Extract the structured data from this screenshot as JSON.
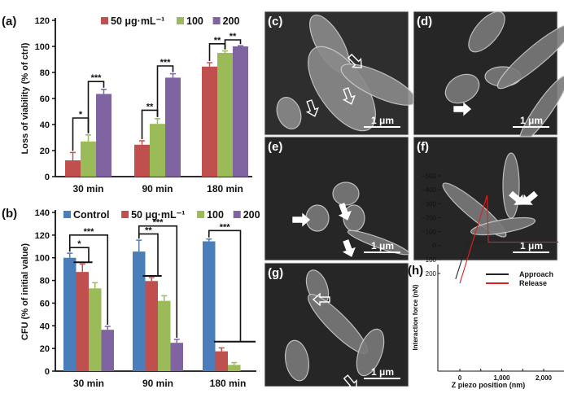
{
  "colors": {
    "control": "#4a7ebb",
    "c50": "#c0504d",
    "c100": "#9bbb59",
    "c200": "#8064a2",
    "approach": "#222222",
    "release": "#e02020"
  },
  "chart_data": [
    {
      "panel": "(a)",
      "type": "bar",
      "ylabel": "Loss of viability (% of ctrl)",
      "categories": [
        "30 min",
        "90 min",
        "180 min"
      ],
      "ylim": [
        0,
        120
      ],
      "yticks": [
        0,
        20,
        40,
        60,
        80,
        100,
        120
      ],
      "legend_position": "top",
      "series": [
        {
          "name": "50 μg·mL⁻¹",
          "color_key": "c50",
          "values": [
            12.5,
            24.5,
            84.5
          ],
          "errors": [
            6,
            3,
            3
          ]
        },
        {
          "name": "100",
          "color_key": "c100",
          "values": [
            27,
            40.5,
            95
          ],
          "errors": [
            5,
            4,
            1.5
          ]
        },
        {
          "name": "200",
          "color_key": "c200",
          "values": [
            63.5,
            76,
            100
          ],
          "errors": [
            3.5,
            3,
            0.5
          ]
        }
      ],
      "brackets": [
        {
          "group": 0,
          "from": 0,
          "to": 1,
          "level": 45,
          "label": "*"
        },
        {
          "group": 0,
          "from": 1,
          "to": 2,
          "level": 73,
          "label": "***"
        },
        {
          "group": 1,
          "from": 0,
          "to": 1,
          "level": 51,
          "label": "**"
        },
        {
          "group": 1,
          "from": 1,
          "to": 2,
          "level": 85,
          "label": "***"
        },
        {
          "group": 2,
          "from": 0,
          "to": 1,
          "level": 102,
          "label": "**"
        },
        {
          "group": 2,
          "from": 1,
          "to": 2,
          "level": 105,
          "label": "**"
        }
      ],
      "spans": []
    },
    {
      "panel": "(b)",
      "type": "bar",
      "ylabel": "CFU (% of initial value)",
      "categories": [
        "30 min",
        "90 min",
        "180 min"
      ],
      "ylim": [
        0,
        140
      ],
      "yticks": [
        0,
        20,
        40,
        60,
        80,
        100,
        120,
        140
      ],
      "legend_position": "top",
      "series": [
        {
          "name": "Control",
          "color_key": "control",
          "values": [
            100,
            105.5,
            114.5
          ],
          "errors": [
            4,
            10,
            2
          ]
        },
        {
          "name": "50 μg·mL⁻¹",
          "color_key": "c50",
          "values": [
            87.5,
            79.5,
            17.5
          ],
          "errors": [
            7,
            3,
            3
          ]
        },
        {
          "name": "100",
          "color_key": "c100",
          "values": [
            73,
            62,
            5.5
          ],
          "errors": [
            5,
            4.5,
            2
          ]
        },
        {
          "name": "200",
          "color_key": "c200",
          "values": [
            36.5,
            25,
            0
          ],
          "errors": [
            3,
            3,
            0
          ]
        }
      ],
      "brackets": [
        {
          "group": 0,
          "from": 0,
          "to": 3,
          "level": 120,
          "label": "***"
        },
        {
          "group": 0,
          "from": 0,
          "to": 1.5,
          "level": 109,
          "label": "*",
          "end": 96
        },
        {
          "group": 1,
          "from": 0,
          "to": 3,
          "level": 128,
          "label": "***"
        },
        {
          "group": 1,
          "from": 0,
          "to": 1.5,
          "level": 121,
          "label": "**",
          "end": 84
        },
        {
          "group": 2,
          "from": 0,
          "to": 2.5,
          "level": 124,
          "label": "***",
          "end": 26
        }
      ],
      "spans": [
        {
          "group": 0,
          "from": 0.8,
          "to": 2.3,
          "level": 96
        },
        {
          "group": 1,
          "from": 0.8,
          "to": 2.3,
          "level": 84
        },
        {
          "group": 2,
          "from": 0.9,
          "to": 4.2,
          "level": 26
        }
      ]
    },
    {
      "panel": "(h)",
      "type": "line",
      "xlabel": "Z piezo position (nm)",
      "ylabel": "Interaction force (nN)",
      "xlim": [
        -520,
        2350
      ],
      "ylim": [
        -500,
        270
      ],
      "xticks": [
        0,
        1000,
        2000
      ],
      "xtick_labels": [
        "0",
        "1,000",
        "2,000"
      ],
      "yticks": [
        200,
        100,
        0,
        -100,
        -200,
        -300,
        -400,
        -500
      ],
      "legend_position": "top-right",
      "series": [
        {
          "name": "Approach",
          "color_key": "approach",
          "x": [
            -100,
            180,
            2350
          ],
          "y": [
            240,
            -25,
            -25
          ]
        },
        {
          "name": "Release",
          "color_key": "release",
          "x": [
            0,
            650,
            680,
            2350
          ],
          "y": [
            270,
            -360,
            -25,
            -25
          ]
        }
      ]
    }
  ],
  "micrographs": [
    {
      "label": "(c)",
      "scale": "1 μm",
      "arrows": "hollow"
    },
    {
      "label": "(d)",
      "scale": "1 μm",
      "arrows": "solid"
    },
    {
      "label": "(e)",
      "scale": "1 μm",
      "arrows": "solid"
    },
    {
      "label": "(f)",
      "scale": "1 μm",
      "arrows": "solid"
    },
    {
      "label": "(g)",
      "scale": "1 μm",
      "arrows": "hollow"
    }
  ]
}
